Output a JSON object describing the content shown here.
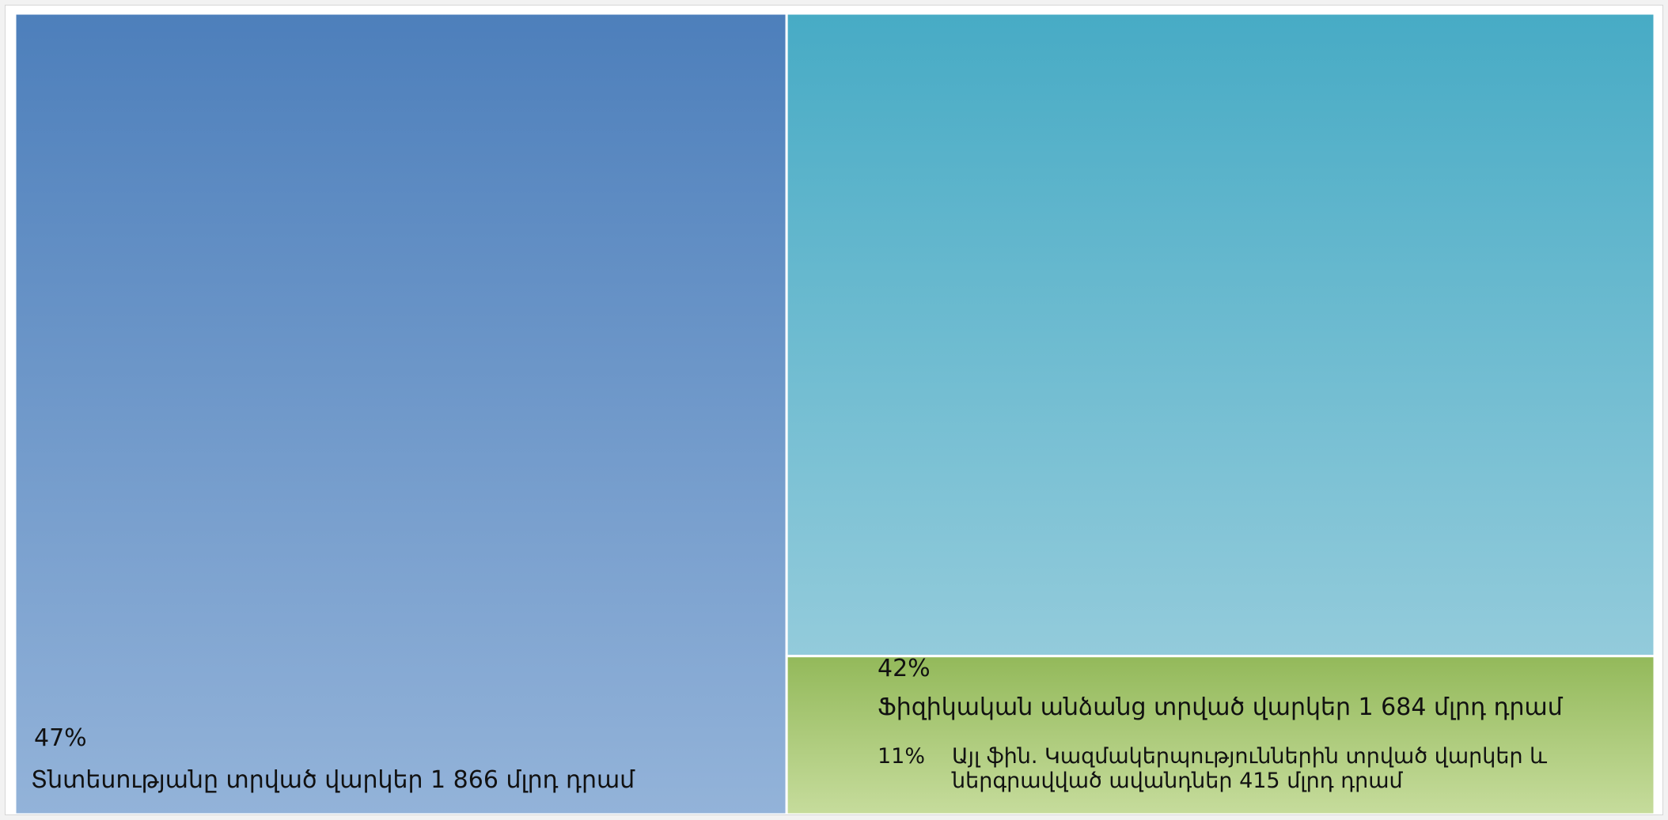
{
  "chart_data": {
    "type": "treemap",
    "title": "",
    "items": [
      {
        "id": "economy-loans",
        "percent_label": "47%",
        "label": "Տնտեսությանը տրված վարկեր 1 866 մլրդ դրամ",
        "value": 1866,
        "unit": "մլրդ դրամ",
        "share": 47,
        "gradient": [
          "#4d7fbb",
          "#93b3d9"
        ]
      },
      {
        "id": "individual-loans",
        "percent_label": "42%",
        "label": "Ֆիզիկական անձանց տրված վարկեր 1 684 մլրդ դրամ",
        "value": 1684,
        "unit": "մլրդ դրամ",
        "share": 42,
        "gradient": [
          "#47abc5",
          "#93cbdb"
        ]
      },
      {
        "id": "other-fin-loans",
        "percent_label": "11%",
        "label": "Այլ ֆին. Կազմակերպություններին տրված վարկեր և ներգրավված ավանդներ 415 մլրդ դրամ",
        "value": 415,
        "unit": "մլրդ դրամ",
        "share": 11,
        "gradient": [
          "#93b95a",
          "#c6dc9c"
        ]
      }
    ]
  }
}
